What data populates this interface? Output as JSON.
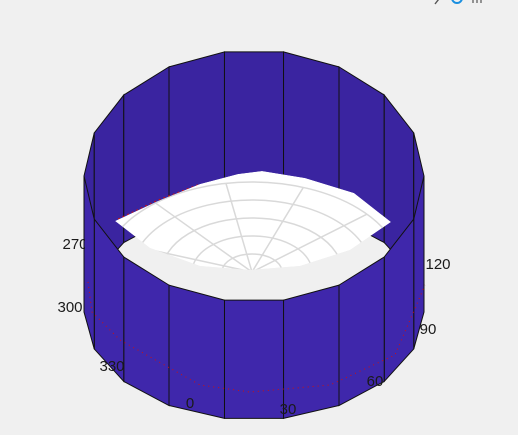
{
  "colors": {
    "background": "#f0f0f0",
    "surface_face": "#3f27ab",
    "surface_edge": "#111111",
    "floor": "#ffffff",
    "polar_grid": "#d9d9d9",
    "data_line": "#cc1111",
    "toolbar_accent": "#1a8fe0"
  },
  "toolbar": {
    "icons": [
      "brush-icon",
      "rotate-icon",
      "pan-icon"
    ]
  },
  "chart_data": {
    "type": "surface",
    "projection": "polar",
    "title": "",
    "theta_ticks": [
      "0",
      "30",
      "60",
      "90",
      "120",
      "270",
      "300",
      "330"
    ],
    "segments": 18,
    "theta_step_deg": 20,
    "radius": 1.0,
    "z_range": [
      0,
      1
    ],
    "grid": true,
    "inner_rings": [
      0.2,
      0.4,
      0.6,
      0.8,
      1.0
    ]
  }
}
